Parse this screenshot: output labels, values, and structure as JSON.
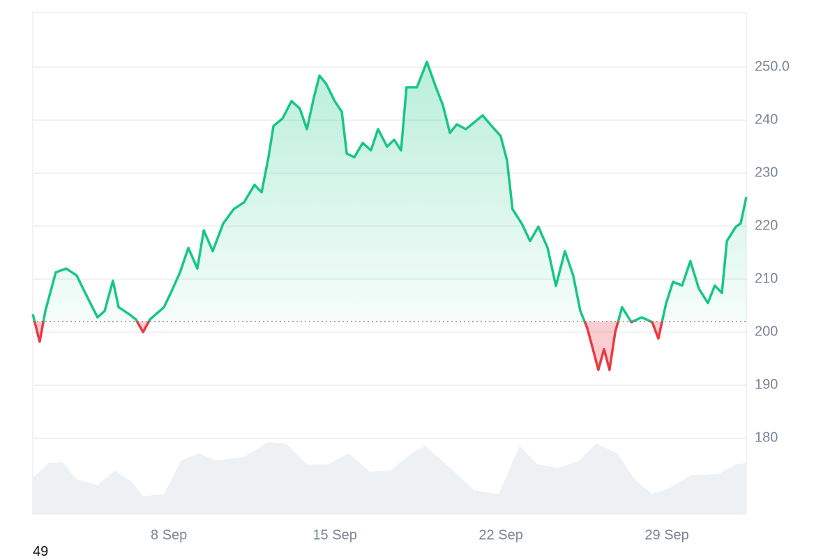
{
  "chart_data": {
    "type": "line",
    "x": [
      2.26,
      2.55,
      2.79,
      3.23,
      3.67,
      4.11,
      4.55,
      4.99,
      5.29,
      5.64,
      5.88,
      6.32,
      6.61,
      6.91,
      7.2,
      7.79,
      8.08,
      8.47,
      8.82,
      9.2,
      9.47,
      9.85,
      10.29,
      10.73,
      11.17,
      11.61,
      11.91,
      12.2,
      12.41,
      12.79,
      13.17,
      13.52,
      13.82,
      14.11,
      14.35,
      14.64,
      14.99,
      15.29,
      15.5,
      15.82,
      16.17,
      16.52,
      16.82,
      17.2,
      17.5,
      17.79,
      18.02,
      18.46,
      18.88,
      19.26,
      19.55,
      19.85,
      20.14,
      20.52,
      20.88,
      21.23,
      21.61,
      21.99,
      22.26,
      22.49,
      22.88,
      23.23,
      23.58,
      23.97,
      24.32,
      24.7,
      25.05,
      25.35,
      25.64,
      25.88,
      26.11,
      26.35,
      26.58,
      26.82,
      27.11,
      27.5,
      27.94,
      28.38,
      28.64,
      28.97,
      29.26,
      29.64,
      29.99,
      30.35,
      30.73,
      31.02,
      31.32,
      31.53,
      31.91,
      32.11,
      32.35
    ],
    "values": [
      203.4,
      198.2,
      204,
      211.3,
      212,
      210.7,
      206.7,
      202.8,
      204,
      209.7,
      204.7,
      203.4,
      202.4,
      200,
      202.4,
      204.7,
      207.4,
      211.3,
      215.9,
      212,
      219.2,
      215.3,
      220.5,
      223.2,
      224.5,
      227.8,
      226.4,
      233,
      238.9,
      240.3,
      243.6,
      242.2,
      238.3,
      244.2,
      248.4,
      246.8,
      243.6,
      241.6,
      233.7,
      233,
      235.7,
      234.3,
      238.3,
      235,
      236.3,
      234.3,
      246.2,
      246.2,
      251,
      246.2,
      242.9,
      237.6,
      239.2,
      238.3,
      239.6,
      240.9,
      238.9,
      237,
      232.4,
      223.2,
      220.5,
      217.2,
      219.9,
      215.9,
      208.7,
      215.3,
      210.7,
      204,
      200.8,
      196.8,
      192.9,
      196.8,
      192.9,
      200,
      204.7,
      201.9,
      202.8,
      201.9,
      198.8,
      205.5,
      209.5,
      208.8,
      213.4,
      208.2,
      205.5,
      208.8,
      207.4,
      217.2,
      219.9,
      220.5,
      225.5
    ],
    "baseline": 202,
    "up_color": "#16c784",
    "down_color": "#ea3943",
    "volume": {
      "color": "#eef1f4",
      "x": [
        2.26,
        2.94,
        3.52,
        4.11,
        4.99,
        5.73,
        6.47,
        6.91,
        7.79,
        8.52,
        9.26,
        9.98,
        11.17,
        12.2,
        12.94,
        13.82,
        14.7,
        15.58,
        16.47,
        17.35,
        18.23,
        18.82,
        19.7,
        20.88,
        21.91,
        22.79,
        23.53,
        24.41,
        25.29,
        26.02,
        26.91,
        27.64,
        28.38,
        29.11,
        29.99,
        31.17,
        31.91,
        32.35
      ],
      "values": [
        49,
        69,
        70,
        47,
        39,
        59,
        42,
        24,
        27,
        72,
        82,
        72,
        77,
        97,
        95,
        67,
        67,
        82,
        57,
        59,
        82,
        92,
        67,
        32,
        27,
        92,
        67,
        62,
        72,
        95,
        82,
        47,
        27,
        35,
        52,
        54,
        67,
        69
      ]
    },
    "xlim": [
      2.26,
      32.35
    ],
    "xticks": [
      {
        "value": 8,
        "label": "8 Sep"
      },
      {
        "value": 15,
        "label": "15 Sep"
      },
      {
        "value": 22,
        "label": "22 Sep"
      },
      {
        "value": 29,
        "label": "29 Sep"
      }
    ],
    "ylim": [
      165.7,
      260.3
    ],
    "yticks": [
      180,
      190,
      200,
      210,
      220,
      230,
      240,
      {
        "value": 250,
        "label": "250.0"
      }
    ],
    "grid": true
  },
  "footer": "49"
}
